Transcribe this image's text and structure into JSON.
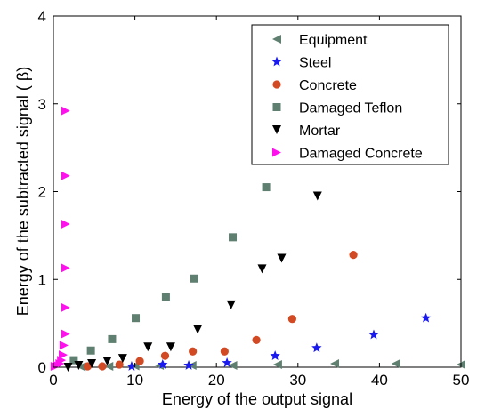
{
  "chart_data": {
    "type": "scatter",
    "title": "",
    "xlabel": "Energy of the output signal",
    "ylabel": "Energy of the subtracted signal ( β)",
    "xlim": [
      0,
      50
    ],
    "ylim": [
      0,
      4
    ],
    "xticks": [
      0,
      10,
      20,
      30,
      40,
      50
    ],
    "yticks": [
      0,
      1,
      2,
      3,
      4
    ],
    "grid": false,
    "legend_position": "top-right",
    "series": [
      {
        "name": "Equipment",
        "marker": "triangle-left",
        "color": "#5f7f71",
        "points": [
          [
            3.4,
            0.005
          ],
          [
            6.8,
            0.01
          ],
          [
            10.0,
            0.015
          ],
          [
            13.0,
            0.02
          ],
          [
            17.0,
            0.02
          ],
          [
            22.0,
            0.02
          ],
          [
            27.5,
            0.03
          ],
          [
            34.5,
            0.04
          ],
          [
            42.0,
            0.04
          ],
          [
            50.0,
            0.03
          ]
        ]
      },
      {
        "name": "Steel",
        "marker": "star",
        "color": "#1a1aee",
        "points": [
          [
            9.6,
            0.01
          ],
          [
            13.4,
            0.03
          ],
          [
            16.6,
            0.02
          ],
          [
            21.3,
            0.05
          ],
          [
            27.2,
            0.13
          ],
          [
            32.3,
            0.22
          ],
          [
            39.3,
            0.37
          ],
          [
            45.7,
            0.56
          ]
        ]
      },
      {
        "name": "Concrete",
        "marker": "circle",
        "color": "#d24a24",
        "points": [
          [
            4.2,
            0.01
          ],
          [
            6.0,
            0.01
          ],
          [
            8.1,
            0.03
          ],
          [
            10.6,
            0.07
          ],
          [
            13.7,
            0.13
          ],
          [
            17.1,
            0.18
          ],
          [
            21.0,
            0.18
          ],
          [
            24.9,
            0.31
          ],
          [
            29.3,
            0.55
          ],
          [
            36.8,
            1.28
          ]
        ]
      },
      {
        "name": "Damaged Teflon",
        "marker": "square",
        "color": "#5f7f71",
        "points": [
          [
            2.5,
            0.08
          ],
          [
            4.6,
            0.19
          ],
          [
            7.2,
            0.32
          ],
          [
            10.1,
            0.56
          ],
          [
            13.8,
            0.8
          ],
          [
            17.3,
            1.01
          ],
          [
            22.0,
            1.48
          ],
          [
            26.1,
            2.05
          ]
        ]
      },
      {
        "name": "Mortar",
        "marker": "triangle-down",
        "color": "#000000",
        "points": [
          [
            1.8,
            0.0
          ],
          [
            3.1,
            0.02
          ],
          [
            4.7,
            0.04
          ],
          [
            6.6,
            0.07
          ],
          [
            8.5,
            0.1
          ],
          [
            11.6,
            0.23
          ],
          [
            14.4,
            0.23
          ],
          [
            17.7,
            0.43
          ],
          [
            21.8,
            0.71
          ],
          [
            25.6,
            1.12
          ],
          [
            28.0,
            1.24
          ],
          [
            32.4,
            1.95
          ]
        ]
      },
      {
        "name": "Damaged Concrete",
        "marker": "triangle-right",
        "color": "#ff11ee",
        "points": [
          [
            1.5,
            2.92
          ],
          [
            1.5,
            2.18
          ],
          [
            1.5,
            1.63
          ],
          [
            1.5,
            1.13
          ],
          [
            1.5,
            0.68
          ],
          [
            1.5,
            0.38
          ],
          [
            1.3,
            0.25
          ],
          [
            1.2,
            0.14
          ],
          [
            1.0,
            0.08
          ],
          [
            0.8,
            0.04
          ],
          [
            0.5,
            0.02
          ],
          [
            0.2,
            0.01
          ]
        ]
      }
    ]
  }
}
